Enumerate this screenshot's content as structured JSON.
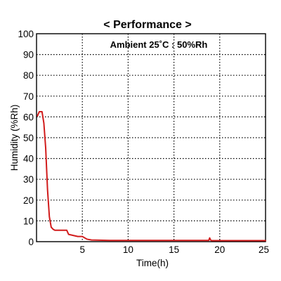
{
  "chart_data": {
    "type": "line",
    "title": "< Performance >",
    "annotation": "Ambient 25˚C : 50%Rh",
    "xlabel": "Time(h)",
    "ylabel": "Humidity (%Rh)",
    "xlim": [
      0,
      25
    ],
    "ylim": [
      0,
      100
    ],
    "xticks": [
      5,
      10,
      15,
      20,
      25
    ],
    "yticks": [
      0,
      10,
      20,
      30,
      40,
      50,
      60,
      70,
      80,
      90,
      100
    ],
    "grid": true,
    "series": [
      {
        "color": "#d11c1c",
        "x": [
          0.1,
          0.3,
          0.6,
          0.8,
          1.0,
          1.2,
          1.4,
          1.6,
          1.8,
          2.0,
          2.5,
          3.0,
          3.3,
          3.5,
          4.0,
          4.5,
          5.0,
          5.5,
          6.0,
          8.0,
          10.0,
          14.0,
          18.0,
          18.8,
          18.9,
          19.0,
          19.1,
          20.0,
          22.0,
          25.0
        ],
        "y": [
          60.5,
          62.5,
          62.5,
          57.0,
          45.0,
          25.0,
          12.0,
          7.0,
          6.0,
          5.5,
          5.5,
          5.5,
          5.5,
          3.5,
          3.0,
          2.5,
          2.5,
          1.2,
          0.8,
          0.6,
          0.6,
          0.6,
          0.6,
          0.6,
          1.8,
          0.8,
          0.5,
          0.5,
          0.5,
          0.5
        ]
      }
    ]
  }
}
